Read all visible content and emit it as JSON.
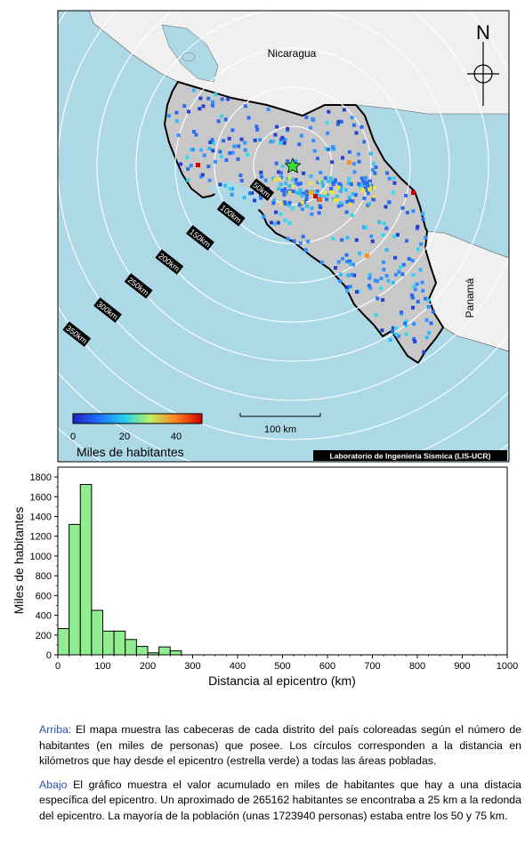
{
  "map": {
    "country_labels": {
      "nicaragua": "Nicaragua",
      "panama": "Panamá"
    },
    "north_label": "N",
    "ring_labels": [
      "50km",
      "100km",
      "150km",
      "200km",
      "250km",
      "300km",
      "350km",
      "400km",
      "450km"
    ],
    "colorbar": {
      "ticks": [
        "0",
        "20",
        "40"
      ],
      "title": "Miles de habitantes",
      "min": 0,
      "max": 50
    },
    "scalebar_label": "100 km",
    "credit": "Laboratorio de Ingeniería Sísmica (LIS-UCR)",
    "colors": {
      "ocean": "#add8e6",
      "country": "#c8c8c8",
      "neighbor": "#f0f0f0",
      "rings": "#ffffff",
      "epicenter": "#33dd33",
      "border": "#000000"
    }
  },
  "chart_data": {
    "type": "bar",
    "title": "",
    "xlabel": "Distancia al epicentro (km)",
    "ylabel": "Miles de habitantes",
    "xlim": [
      0,
      1000
    ],
    "ylim": [
      0,
      1900
    ],
    "x_ticks": [
      0,
      100,
      200,
      300,
      400,
      500,
      600,
      700,
      800,
      900,
      1000
    ],
    "y_ticks": [
      0,
      200,
      400,
      600,
      800,
      1000,
      1200,
      1400,
      1600,
      1800
    ],
    "bin_width_km": 25,
    "bin_starts_km": [
      0,
      25,
      50,
      75,
      100,
      125,
      150,
      175,
      200,
      225,
      250
    ],
    "values": [
      265,
      1320,
      1724,
      450,
      240,
      240,
      155,
      85,
      20,
      80,
      40
    ],
    "bar_color": "#90ee90"
  },
  "caption": {
    "p1_lead": "Arriba:",
    "p1_text": " El mapa muestra las cabeceras de cada distrito del país coloreadas según el número de habitantes (en miles de personas) que posee.  Los círculos corresponden a la distancia en kilómetros que hay desde el epicentro (estrella verde) a todas las áreas pobladas.",
    "p2_lead": "Abajo",
    "p2_text": " El gráfico muestra el valor acumulado en miles de habitantes que hay a una distacia específica del epicentro.  Un aproximado de 265162 habitantes se encontraba a 25 km a la redonda del epicentro.  La mayoría de la población (unas 1723940 personas) estaba entre los 50 y 75 km."
  }
}
